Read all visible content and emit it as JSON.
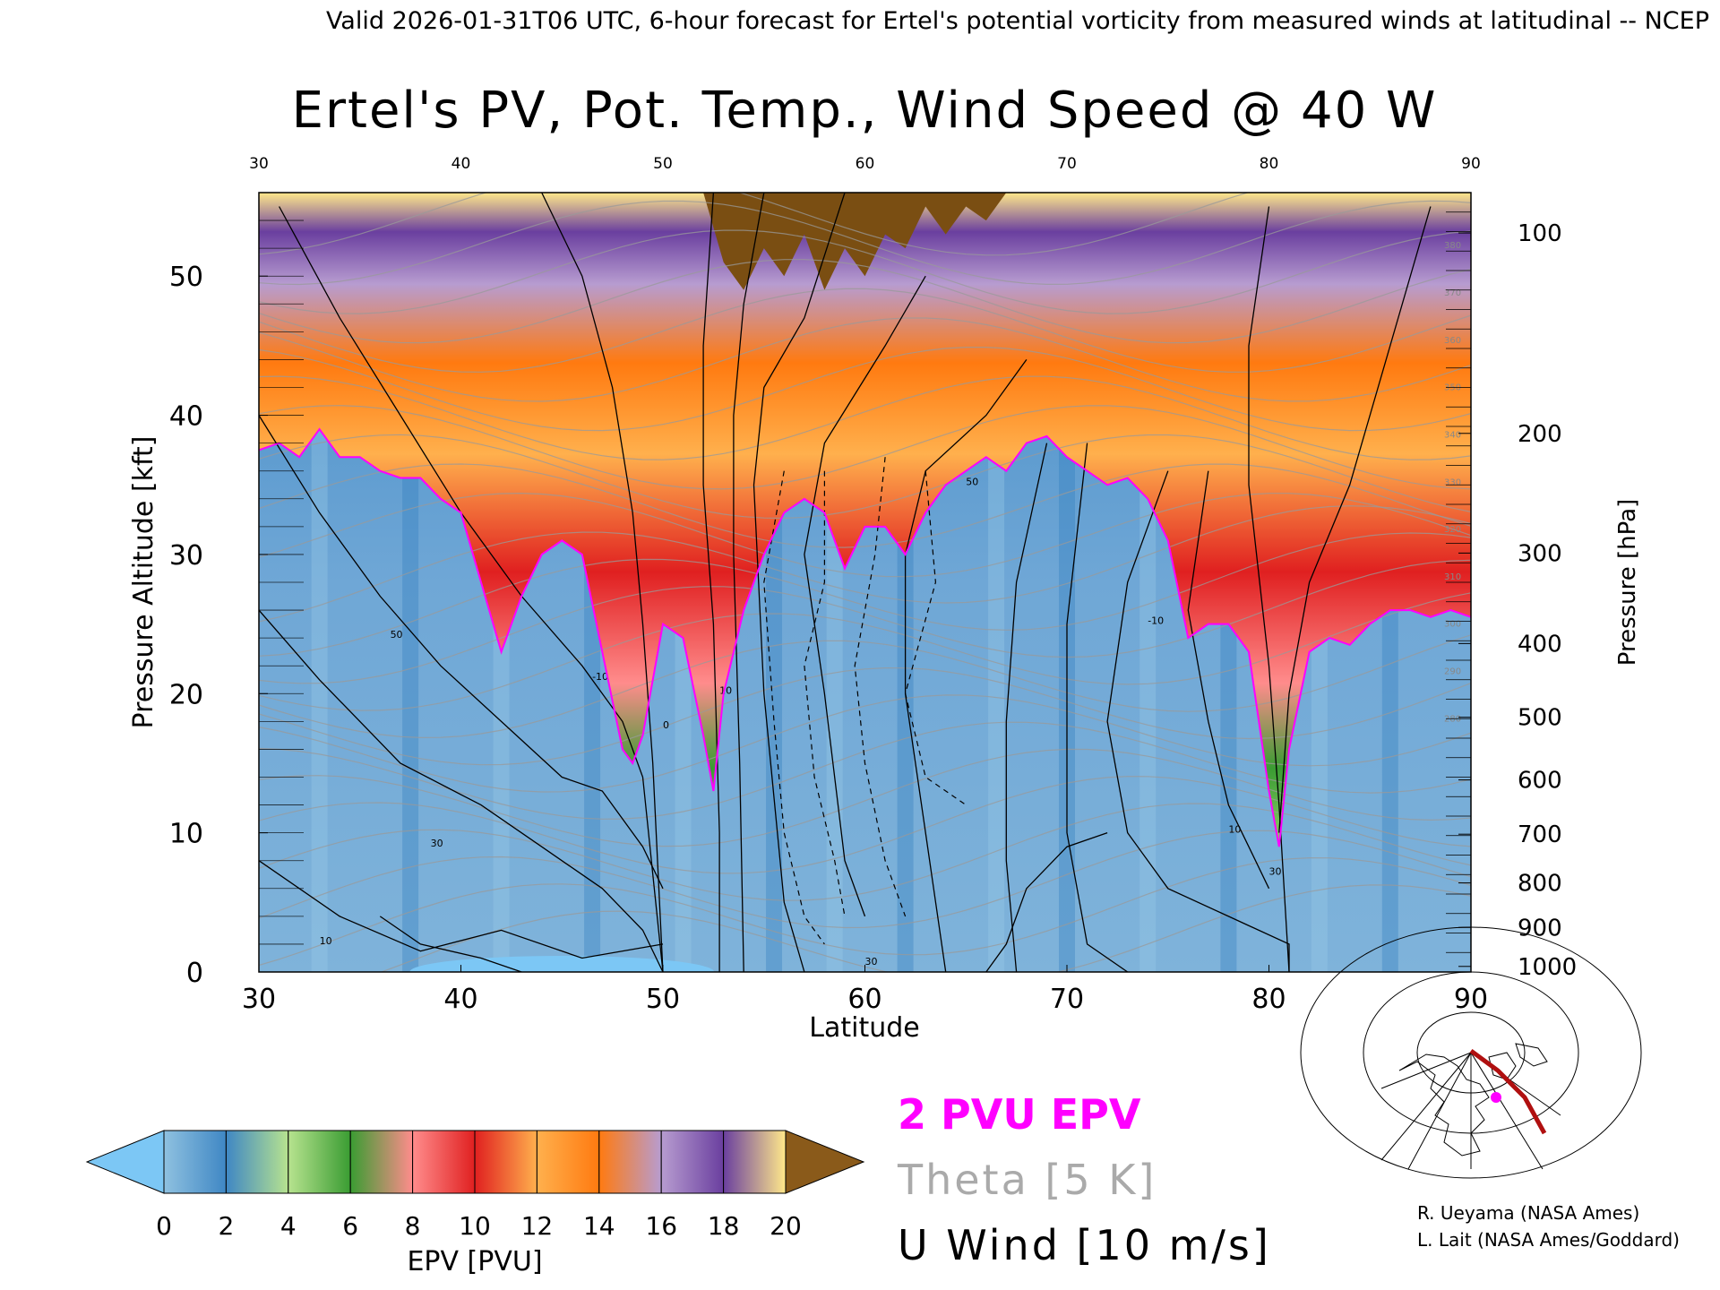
{
  "header": {
    "valid_line": "Valid 2026-01-31T06 UTC, 6-hour forecast for Ertel's potential vorticity from measured winds at latitudinal -- NCEP"
  },
  "chart_data": {
    "type": "heatmap",
    "title": "Ertel's PV, Pot. Temp., Wind Speed @ 40 W",
    "xlabel": "Latitude",
    "ylabel_left": "Pressure Altitude [kft]",
    "ylabel_right": "Pressure [hPa]",
    "xlim": [
      30,
      90
    ],
    "ylim": [
      0,
      56
    ],
    "x_ticks": [
      30,
      40,
      50,
      60,
      70,
      80,
      90
    ],
    "y_ticks_left": [
      0,
      10,
      20,
      30,
      40,
      50
    ],
    "y_ticks_right": [
      {
        "hpa": 100,
        "kft": 53.1
      },
      {
        "hpa": 200,
        "kft": 38.7
      },
      {
        "hpa": 300,
        "kft": 30.1
      },
      {
        "hpa": 400,
        "kft": 23.6
      },
      {
        "hpa": 500,
        "kft": 18.3
      },
      {
        "hpa": 600,
        "kft": 13.8
      },
      {
        "hpa": 700,
        "kft": 9.9
      },
      {
        "hpa": 800,
        "kft": 6.4
      },
      {
        "hpa": 900,
        "kft": 3.2
      },
      {
        "hpa": 1000,
        "kft": 0.4
      }
    ],
    "tropopause_2pvu_kft": [
      [
        30,
        37.5
      ],
      [
        31,
        38
      ],
      [
        32,
        37
      ],
      [
        33,
        39
      ],
      [
        34,
        37
      ],
      [
        35,
        37
      ],
      [
        36,
        36
      ],
      [
        37,
        35.5
      ],
      [
        38,
        35.5
      ],
      [
        39,
        34
      ],
      [
        40,
        33
      ],
      [
        41,
        28
      ],
      [
        42,
        23
      ],
      [
        43,
        27
      ],
      [
        44,
        30
      ],
      [
        45,
        31
      ],
      [
        46,
        30
      ],
      [
        47,
        23
      ],
      [
        48,
        16
      ],
      [
        48.5,
        15
      ],
      [
        49,
        17
      ],
      [
        50,
        25
      ],
      [
        51,
        24
      ],
      [
        52,
        17
      ],
      [
        52.5,
        13
      ],
      [
        53,
        20
      ],
      [
        54,
        26
      ],
      [
        55,
        30
      ],
      [
        56,
        33
      ],
      [
        57,
        34
      ],
      [
        58,
        33
      ],
      [
        59,
        29
      ],
      [
        60,
        32
      ],
      [
        61,
        32
      ],
      [
        62,
        30
      ],
      [
        63,
        33
      ],
      [
        64,
        35
      ],
      [
        65,
        36
      ],
      [
        66,
        37
      ],
      [
        67,
        36
      ],
      [
        68,
        38
      ],
      [
        69,
        38.5
      ],
      [
        70,
        37
      ],
      [
        71,
        36
      ],
      [
        72,
        35
      ],
      [
        73,
        35.5
      ],
      [
        74,
        34
      ],
      [
        75,
        31
      ],
      [
        76,
        24
      ],
      [
        77,
        25
      ],
      [
        78,
        25
      ],
      [
        79,
        23
      ],
      [
        80,
        13
      ],
      [
        80.5,
        9
      ],
      [
        81,
        16
      ],
      [
        82,
        23
      ],
      [
        83,
        24
      ],
      [
        84,
        23.5
      ],
      [
        85,
        25
      ],
      [
        86,
        26
      ],
      [
        87,
        26
      ],
      [
        88,
        25.5
      ],
      [
        89,
        26
      ],
      [
        90,
        25.5
      ]
    ],
    "stratosphere_top_band_kft": [
      [
        52,
        56
      ],
      [
        53,
        51
      ],
      [
        54,
        49
      ],
      [
        55,
        52
      ],
      [
        56,
        50
      ],
      [
        57,
        53
      ],
      [
        58,
        49
      ],
      [
        59,
        52
      ],
      [
        60,
        50
      ],
      [
        61,
        53
      ],
      [
        62,
        52
      ],
      [
        63,
        55
      ],
      [
        64,
        53
      ],
      [
        65,
        55
      ],
      [
        66,
        54
      ],
      [
        67,
        56
      ]
    ],
    "theta_interval_K": 5,
    "theta_labels": [
      "380",
      "370",
      "360",
      "350",
      "340",
      "330",
      "320",
      "310",
      "300",
      "290",
      "280"
    ],
    "u_wind_contour_interval_ms": 10,
    "u_wind_labels": [
      "10",
      "30",
      "50",
      "-10",
      "0",
      "10",
      "30",
      "50",
      "30",
      "10",
      "-10"
    ],
    "colorbar": {
      "label": "EPV [PVU]",
      "ticks": [
        "0",
        "2",
        "4",
        "6",
        "8",
        "10",
        "12",
        "14",
        "16",
        "18",
        "20"
      ],
      "colors": [
        "#8fc1e0",
        "#3f87c4",
        "#b7e38f",
        "#3a9c32",
        "#ff8c8c",
        "#e02020",
        "#ffb04d",
        "#ff7a10",
        "#b79cd0",
        "#6a3f9f",
        "#ffe88a",
        "#8a5a1a"
      ],
      "under_color": "#7cc7f5",
      "over_color": "#8a5a1a"
    },
    "legend": {
      "pvu": "2 PVU EPV",
      "pvu_color": "#ff00ff",
      "theta": "Theta [5 K]",
      "theta_color": "#aaaaaa",
      "wind": "U Wind [10 m/s]",
      "wind_color": "#000000"
    }
  },
  "credits": {
    "line1": "R. Ueyama (NASA Ames)",
    "line2": "L. Lait (NASA Ames/Goddard)"
  },
  "inset_map": {
    "track_color": "#b01010",
    "marker_color": "#ff00ff"
  }
}
